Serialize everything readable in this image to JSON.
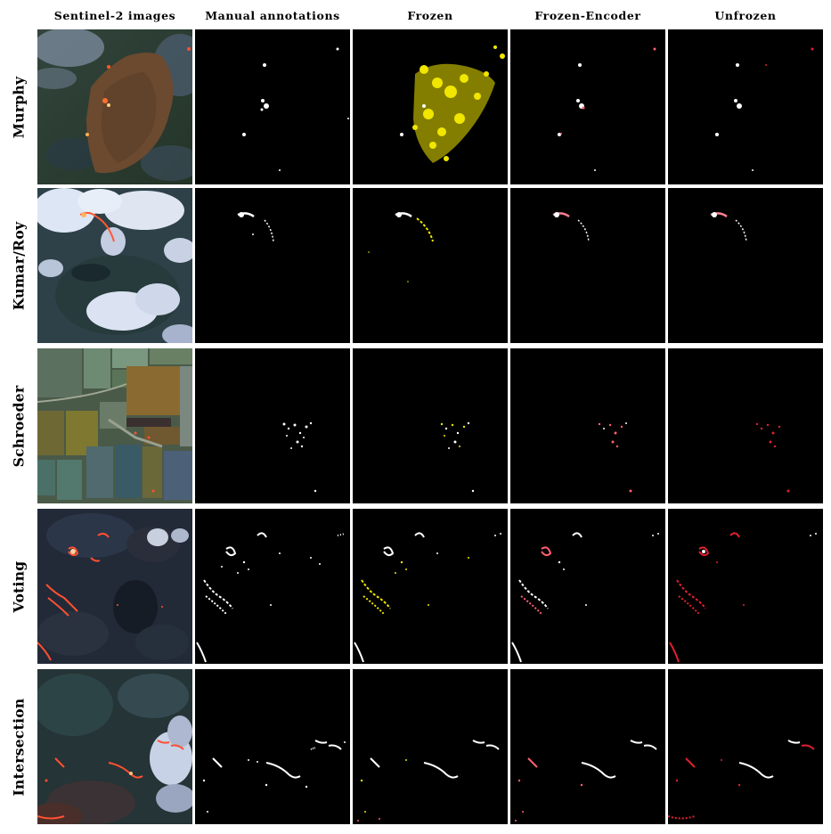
{
  "columns": [
    "Sentinel-2 images",
    "Manual annotations",
    "Frozen",
    "Frozen-Encoder",
    "Unfrozen"
  ],
  "rows": [
    "Murphy",
    "Kumar/Roy",
    "Schroeder",
    "Voting",
    "Intersection"
  ],
  "colors": {
    "background": "#ffffff",
    "mask_background": "#000000",
    "annotation": "#ffffff",
    "frozen_overlay": "#f0e600",
    "frozen_encoder_overlay": "#ff6070",
    "unfrozen_overlay": "#e02030"
  }
}
